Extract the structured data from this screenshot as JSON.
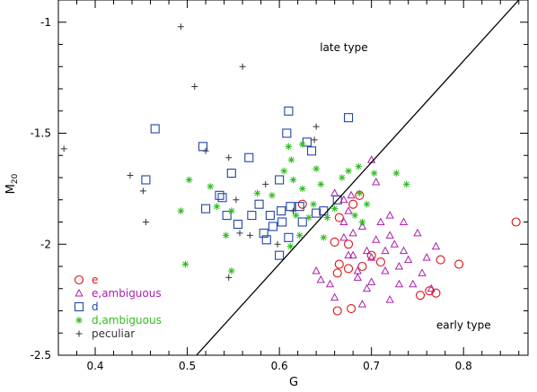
{
  "chart_data": {
    "type": "scatter",
    "xlabel": "G",
    "ylabel": "M",
    "ylabel_sub": "20",
    "xlim": [
      0.36,
      0.87
    ],
    "ylim": [
      -2.5,
      -0.9
    ],
    "xticks": [
      "0.4",
      "0.5",
      "0.6",
      "0.7",
      "0.8"
    ],
    "xtick_values": [
      0.4,
      0.5,
      0.6,
      0.7,
      0.8
    ],
    "yticks": [
      "-1",
      "-1.5",
      "-2",
      "-2.5"
    ],
    "ytick_values": [
      -1,
      -1.5,
      -2,
      -2.5
    ],
    "annotations": [
      {
        "text": "late type",
        "x": 0.67,
        "y": -1.13
      },
      {
        "text": "early type",
        "x": 0.8,
        "y": -2.38
      }
    ],
    "line": {
      "x": [
        0.51,
        0.86
      ],
      "y": [
        -2.5,
        -0.9
      ]
    },
    "legend_position": "bottom-left",
    "series": [
      {
        "name": "e",
        "marker": "circle",
        "color": "#dd1111",
        "points": [
          [
            0.625,
            -1.82
          ],
          [
            0.66,
            -1.99
          ],
          [
            0.665,
            -1.88
          ],
          [
            0.675,
            -2.0
          ],
          [
            0.68,
            -1.82
          ],
          [
            0.687,
            -1.78
          ],
          [
            0.69,
            -2.1
          ],
          [
            0.675,
            -2.11
          ],
          [
            0.665,
            -2.09
          ],
          [
            0.663,
            -2.13
          ],
          [
            0.663,
            -2.3
          ],
          [
            0.678,
            -2.29
          ],
          [
            0.7,
            -2.05
          ],
          [
            0.71,
            -2.08
          ],
          [
            0.753,
            -2.23
          ],
          [
            0.763,
            -2.21
          ],
          [
            0.77,
            -2.22
          ],
          [
            0.775,
            -2.07
          ],
          [
            0.795,
            -2.09
          ],
          [
            0.857,
            -1.9
          ]
        ]
      },
      {
        "name": "e,ambiguous",
        "marker": "triangle",
        "color": "#aa22aa",
        "points": [
          [
            0.67,
            -1.9
          ],
          [
            0.67,
            -1.97
          ],
          [
            0.675,
            -1.85
          ],
          [
            0.678,
            -1.78
          ],
          [
            0.68,
            -2.05
          ],
          [
            0.685,
            -2.15
          ],
          [
            0.69,
            -1.92
          ],
          [
            0.695,
            -2.03
          ],
          [
            0.7,
            -2.06
          ],
          [
            0.705,
            -1.98
          ],
          [
            0.71,
            -1.9
          ],
          [
            0.715,
            -2.12
          ],
          [
            0.72,
            -1.96
          ],
          [
            0.725,
            -2.0
          ],
          [
            0.73,
            -2.1
          ],
          [
            0.735,
            -2.03
          ],
          [
            0.74,
            -2.07
          ],
          [
            0.745,
            -2.18
          ],
          [
            0.75,
            -1.95
          ],
          [
            0.755,
            -2.13
          ],
          [
            0.76,
            -2.06
          ],
          [
            0.765,
            -2.2
          ],
          [
            0.77,
            -2.01
          ],
          [
            0.705,
            -1.72
          ],
          [
            0.695,
            -2.2
          ],
          [
            0.685,
            -2.12
          ],
          [
            0.67,
            -1.8
          ],
          [
            0.7,
            -1.62
          ],
          [
            0.66,
            -2.24
          ],
          [
            0.655,
            -2.18
          ],
          [
            0.64,
            -2.12
          ],
          [
            0.645,
            -2.16
          ],
          [
            0.675,
            -2.05
          ],
          [
            0.66,
            -1.77
          ],
          [
            0.69,
            -2.27
          ],
          [
            0.7,
            -2.17
          ],
          [
            0.72,
            -2.25
          ],
          [
            0.73,
            -2.18
          ],
          [
            0.68,
            -1.95
          ],
          [
            0.72,
            -1.87
          ],
          [
            0.735,
            -1.9
          ],
          [
            0.715,
            -2.03
          ]
        ]
      },
      {
        "name": "d",
        "marker": "square",
        "color": "#2244aa",
        "points": [
          [
            0.465,
            -1.48
          ],
          [
            0.455,
            -1.71
          ],
          [
            0.517,
            -1.56
          ],
          [
            0.52,
            -1.84
          ],
          [
            0.535,
            -1.78
          ],
          [
            0.538,
            -1.79
          ],
          [
            0.548,
            -1.68
          ],
          [
            0.555,
            -1.91
          ],
          [
            0.567,
            -1.61
          ],
          [
            0.57,
            -1.87
          ],
          [
            0.578,
            -1.82
          ],
          [
            0.583,
            -1.95
          ],
          [
            0.586,
            -1.98
          ],
          [
            0.59,
            -1.87
          ],
          [
            0.593,
            -1.92
          ],
          [
            0.602,
            -1.85
          ],
          [
            0.603,
            -1.9
          ],
          [
            0.608,
            -1.5
          ],
          [
            0.61,
            -1.4
          ],
          [
            0.612,
            -1.83
          ],
          [
            0.61,
            -1.97
          ],
          [
            0.622,
            -1.83
          ],
          [
            0.625,
            -1.9
          ],
          [
            0.63,
            -1.54
          ],
          [
            0.635,
            -1.58
          ],
          [
            0.64,
            -1.86
          ],
          [
            0.648,
            -1.85
          ],
          [
            0.6,
            -2.05
          ],
          [
            0.663,
            -1.8
          ],
          [
            0.675,
            -1.43
          ],
          [
            0.543,
            -1.87
          ],
          [
            0.6,
            -1.71
          ]
        ]
      },
      {
        "name": "d,ambiguous",
        "marker": "asterisk",
        "color": "#33bb22",
        "points": [
          [
            0.493,
            -1.85
          ],
          [
            0.502,
            -1.71
          ],
          [
            0.525,
            -1.74
          ],
          [
            0.532,
            -1.83
          ],
          [
            0.542,
            -1.96
          ],
          [
            0.548,
            -1.85
          ],
          [
            0.498,
            -2.09
          ],
          [
            0.548,
            -2.12
          ],
          [
            0.576,
            -1.77
          ],
          [
            0.592,
            -1.78
          ],
          [
            0.605,
            -1.67
          ],
          [
            0.61,
            -1.56
          ],
          [
            0.613,
            -1.62
          ],
          [
            0.615,
            -1.71
          ],
          [
            0.618,
            -1.87
          ],
          [
            0.622,
            -1.96
          ],
          [
            0.625,
            -1.75
          ],
          [
            0.632,
            -1.88
          ],
          [
            0.637,
            -1.82
          ],
          [
            0.64,
            -1.66
          ],
          [
            0.645,
            -1.73
          ],
          [
            0.648,
            -1.97
          ],
          [
            0.652,
            -1.88
          ],
          [
            0.66,
            -1.84
          ],
          [
            0.668,
            -1.7
          ],
          [
            0.675,
            -1.67
          ],
          [
            0.682,
            -1.87
          ],
          [
            0.686,
            -1.65
          ],
          [
            0.69,
            -1.9
          ],
          [
            0.695,
            -1.82
          ],
          [
            0.687,
            -1.77
          ],
          [
            0.703,
            -1.68
          ],
          [
            0.727,
            -1.68
          ],
          [
            0.738,
            -1.73
          ],
          [
            0.612,
            -2.01
          ],
          [
            0.625,
            -1.55
          ]
        ]
      },
      {
        "name": "peculiar",
        "marker": "plus",
        "color": "#333333",
        "points": [
          [
            0.366,
            -1.57
          ],
          [
            0.438,
            -1.69
          ],
          [
            0.452,
            -1.76
          ],
          [
            0.455,
            -1.9
          ],
          [
            0.493,
            -1.02
          ],
          [
            0.508,
            -1.29
          ],
          [
            0.56,
            -1.2
          ],
          [
            0.557,
            -1.95
          ],
          [
            0.545,
            -1.61
          ],
          [
            0.553,
            -1.8
          ],
          [
            0.545,
            -2.15
          ],
          [
            0.568,
            -1.96
          ],
          [
            0.598,
            -2.0
          ],
          [
            0.638,
            -1.53
          ],
          [
            0.615,
            -1.85
          ],
          [
            0.585,
            -1.73
          ],
          [
            0.64,
            -1.47
          ],
          [
            0.52,
            -1.58
          ]
        ]
      }
    ]
  }
}
